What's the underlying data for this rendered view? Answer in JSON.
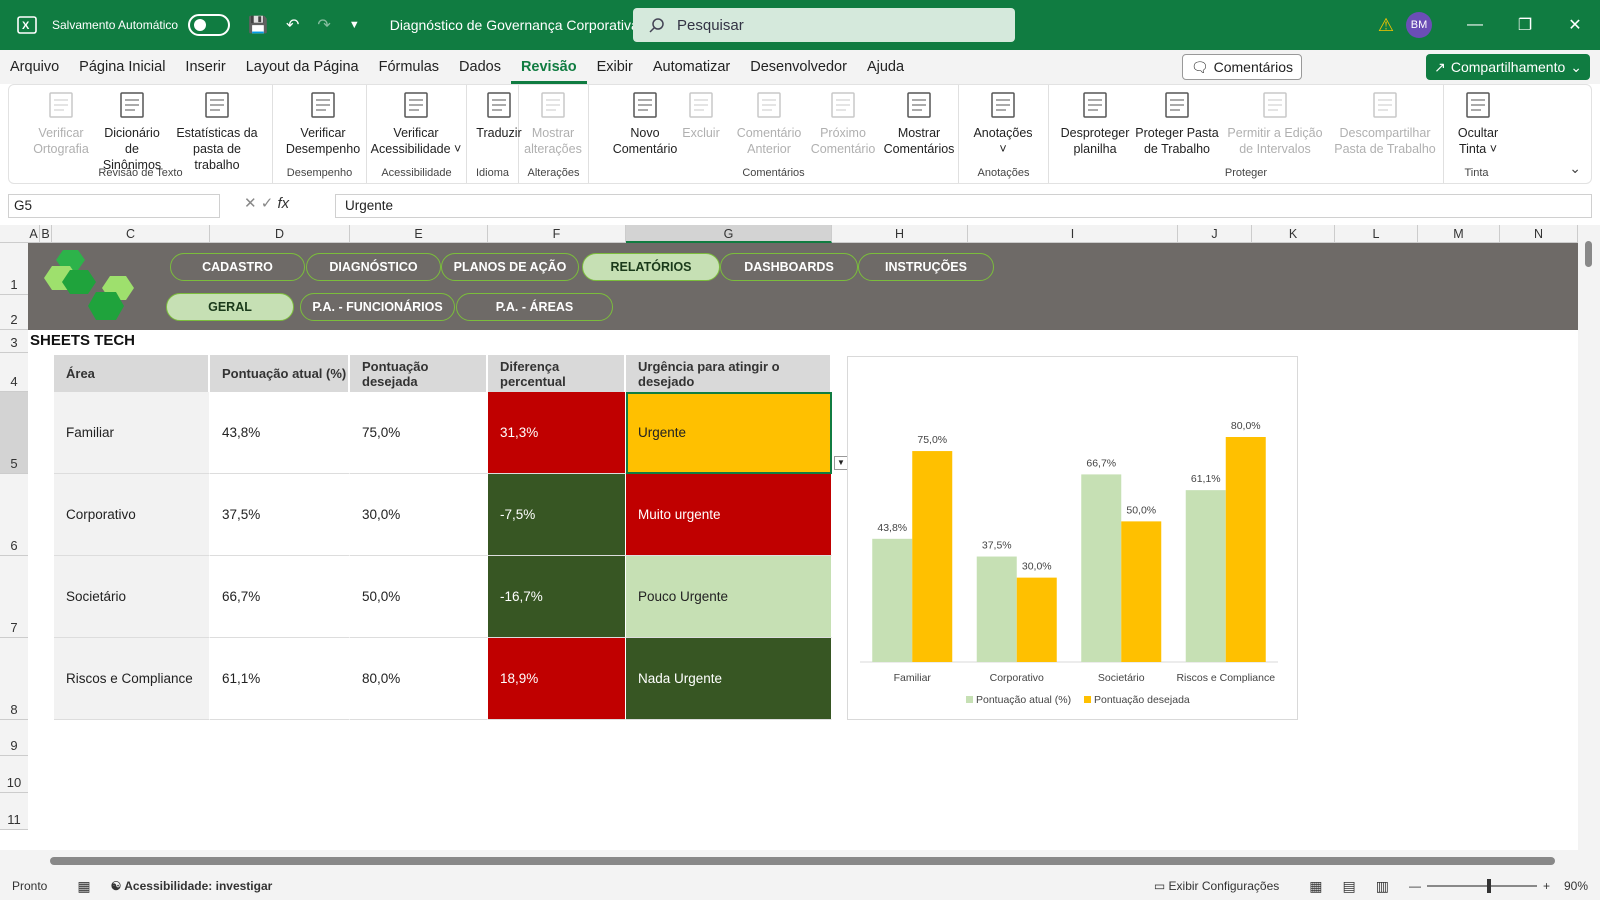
{
  "titlebar": {
    "autosave_label": "Salvamento Automático",
    "doc_title": "Diagnóstico de Governança Corporativa",
    "search_placeholder": "Pesquisar",
    "user_initials": "BM"
  },
  "menu": [
    "Arquivo",
    "Página Inicial",
    "Inserir",
    "Layout da Página",
    "Fórmulas",
    "Dados",
    "Revisão",
    "Exibir",
    "Automatizar",
    "Desenvolvedor",
    "Ajuda"
  ],
  "menu_active": "Revisão",
  "comments_btn": "Comentários",
  "share_btn": "Compartilhamento",
  "ribbon": {
    "groups": [
      {
        "label": "Revisão de Texto",
        "buttons": [
          {
            "l1": "Verificar",
            "l2": "Ortografia",
            "disabled": true
          },
          {
            "l1": "Dicionário",
            "l2": "de Sinônimos",
            "disabled": false
          },
          {
            "l1": "Estatísticas da",
            "l2": "pasta de trabalho",
            "disabled": false
          }
        ]
      },
      {
        "label": "Desempenho",
        "buttons": [
          {
            "l1": "Verificar",
            "l2": "Desempenho",
            "disabled": false
          }
        ]
      },
      {
        "label": "Acessibilidade",
        "buttons": [
          {
            "l1": "Verificar",
            "l2": "Acessibilidade ˅",
            "disabled": false
          }
        ]
      },
      {
        "label": "Idioma",
        "buttons": [
          {
            "l1": "Traduzir",
            "l2": "",
            "disabled": false
          }
        ]
      },
      {
        "label": "Alterações",
        "buttons": [
          {
            "l1": "Mostrar",
            "l2": "alterações",
            "disabled": true
          }
        ]
      },
      {
        "label": "Comentários",
        "buttons": [
          {
            "l1": "Novo",
            "l2": "Comentário",
            "disabled": false
          },
          {
            "l1": "Excluir",
            "l2": "",
            "disabled": true
          },
          {
            "l1": "Comentário",
            "l2": "Anterior",
            "disabled": true
          },
          {
            "l1": "Próximo",
            "l2": "Comentário",
            "disabled": true
          },
          {
            "l1": "Mostrar",
            "l2": "Comentários",
            "disabled": false
          }
        ]
      },
      {
        "label": "Anotações",
        "buttons": [
          {
            "l1": "Anotações",
            "l2": "˅",
            "disabled": false
          }
        ]
      },
      {
        "label": "Proteger",
        "buttons": [
          {
            "l1": "Desproteger",
            "l2": "planilha",
            "disabled": false
          },
          {
            "l1": "Proteger Pasta",
            "l2": "de Trabalho",
            "disabled": false
          },
          {
            "l1": "Permitir a Edição",
            "l2": "de Intervalos",
            "disabled": true
          },
          {
            "l1": "Descompartilhar",
            "l2": "Pasta de Trabalho",
            "disabled": true
          }
        ]
      },
      {
        "label": "Tinta",
        "buttons": [
          {
            "l1": "Ocultar",
            "l2": "Tinta ˅",
            "disabled": false
          }
        ]
      }
    ]
  },
  "formula_bar": {
    "name_box": "G5",
    "value": "Urgente"
  },
  "columns": [
    "A",
    "B",
    "C",
    "D",
    "E",
    "F",
    "G",
    "H",
    "I",
    "J",
    "K",
    "L",
    "M",
    "N"
  ],
  "rows": [
    "1",
    "2",
    "3",
    "4",
    "5",
    "6",
    "7",
    "8",
    "9",
    "10",
    "11"
  ],
  "nav": {
    "top": [
      "CADASTRO",
      "DIAGNÓSTICO",
      "PLANOS DE AÇÃO",
      "RELATÓRIOS",
      "DASHBOARDS",
      "INSTRUÇÕES"
    ],
    "top_active": "RELATÓRIOS",
    "sub": [
      "GERAL",
      "P.A. - FUNCIONÁRIOS",
      "P.A. - ÁREAS"
    ],
    "sub_active": "GERAL"
  },
  "brand": "SHEETS TECH",
  "table": {
    "headers": [
      "Área",
      "Pontuação atual (%)",
      "Pontuação desejada",
      "Diferença percentual",
      "Urgência para atingir o desejado"
    ],
    "rows": [
      {
        "area": "Familiar",
        "atual": "43,8%",
        "desejada": "75,0%",
        "diff": "31,3%",
        "urg": "Urgente",
        "diff_color": "#c00000",
        "urg_color": "#ffc000",
        "diff_text": "#ffffff",
        "urg_text": "#222222"
      },
      {
        "area": "Corporativo",
        "atual": "37,5%",
        "desejada": "30,0%",
        "diff": "-7,5%",
        "urg": "Muito urgente",
        "diff_color": "#375623",
        "urg_color": "#c00000",
        "diff_text": "#ffffff",
        "urg_text": "#ffffff"
      },
      {
        "area": "Societário",
        "atual": "66,7%",
        "desejada": "50,0%",
        "diff": "-16,7%",
        "urg": "Pouco Urgente",
        "diff_color": "#375623",
        "urg_color": "#c6e0b4",
        "diff_text": "#ffffff",
        "urg_text": "#222222"
      },
      {
        "area": "Riscos e Compliance",
        "atual": "61,1%",
        "desejada": "80,0%",
        "diff": "18,9%",
        "urg": "Nada Urgente",
        "diff_color": "#c00000",
        "urg_color": "#375623",
        "diff_text": "#ffffff",
        "urg_text": "#ffffff"
      }
    ]
  },
  "chart_data": {
    "type": "bar",
    "categories": [
      "Familiar",
      "Corporativo",
      "Societário",
      "Riscos e Compliance"
    ],
    "series": [
      {
        "name": "Pontuação atual (%)",
        "values": [
          43.8,
          37.5,
          66.7,
          61.1
        ],
        "labels": [
          "43,8%",
          "37,5%",
          "66,7%",
          "61,1%"
        ],
        "color": "#c6e0b4"
      },
      {
        "name": "Pontuação desejada",
        "values": [
          75.0,
          30.0,
          50.0,
          80.0
        ],
        "labels": [
          "75,0%",
          "30,0%",
          "50,0%",
          "80,0%"
        ],
        "color": "#ffc000"
      }
    ],
    "ylim": [
      0,
      80
    ],
    "legend": "bottom",
    "grid": false
  },
  "status": {
    "ready": "Pronto",
    "accessibility": "Acessibilidade: investigar",
    "display_settings": "Exibir Configurações",
    "zoom": "90%"
  }
}
